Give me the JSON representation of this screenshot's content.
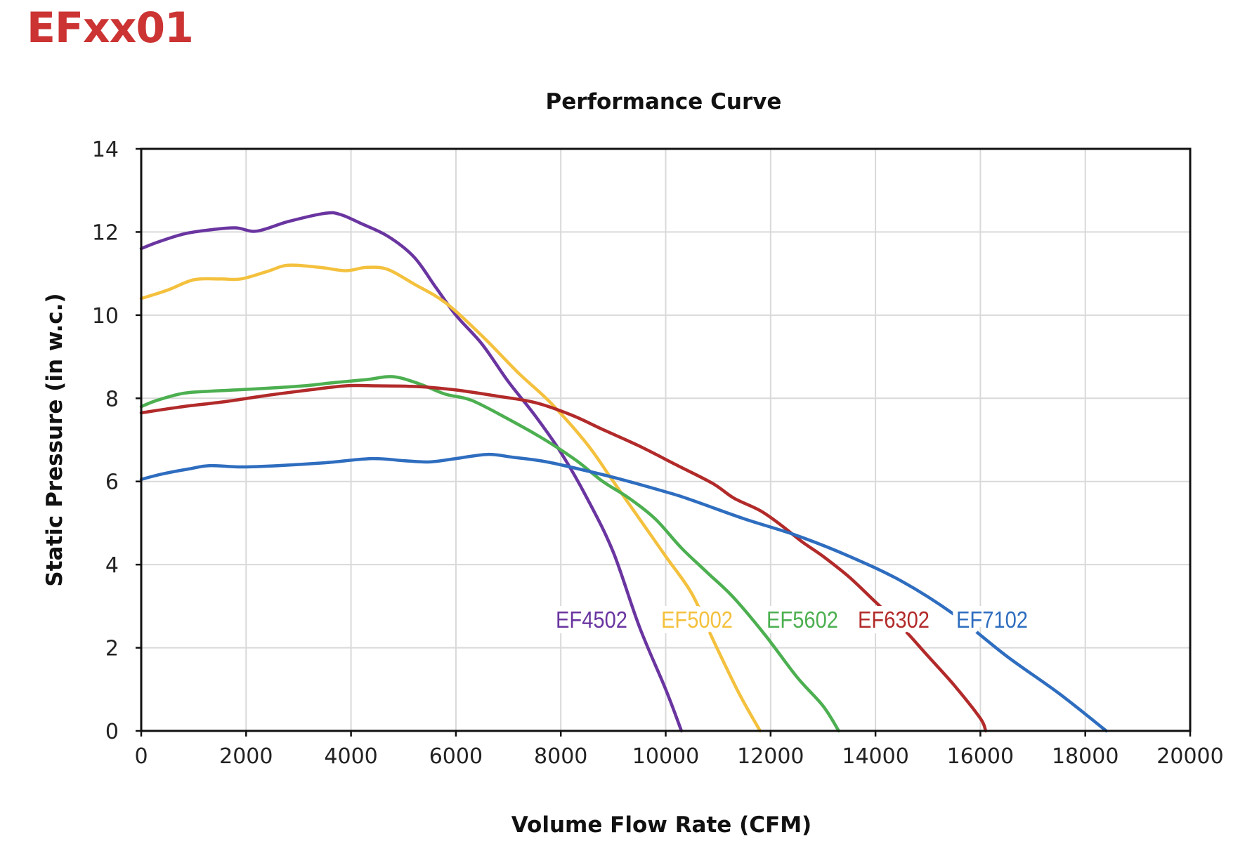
{
  "page": {
    "title": "EFxx01",
    "title_color": "#cc3333"
  },
  "chart_data": {
    "type": "line",
    "title": "Performance Curve",
    "xlabel": "Volume Flow Rate (CFM)",
    "ylabel": "Static Pressure (in w.c.)",
    "xlim": [
      0,
      20000
    ],
    "ylim": [
      0,
      14
    ],
    "xticks": [
      0,
      2000,
      4000,
      6000,
      8000,
      10000,
      12000,
      14000,
      16000,
      18000,
      20000
    ],
    "yticks": [
      0,
      2,
      4,
      6,
      8,
      10,
      12,
      14
    ],
    "grid": true,
    "legend": "inline labels near bottom right",
    "series": [
      {
        "name": "EF4502",
        "color": "#6a35a0",
        "x": [
          0,
          300,
          800,
          1300,
          1800,
          2200,
          2800,
          3500,
          3800,
          4200,
          4700,
          5200,
          5600,
          6000,
          6500,
          7000,
          7500,
          8000,
          8500,
          9000,
          9500,
          10000,
          10300
        ],
        "y": [
          11.6,
          11.75,
          11.95,
          12.05,
          12.1,
          12.02,
          12.25,
          12.45,
          12.42,
          12.2,
          11.9,
          11.4,
          10.7,
          10.0,
          9.3,
          8.4,
          7.6,
          6.7,
          5.6,
          4.3,
          2.5,
          1.0,
          0.0
        ]
      },
      {
        "name": "EF5002",
        "color": "#f4c13e",
        "x": [
          0,
          500,
          1000,
          1500,
          1900,
          2400,
          2800,
          3400,
          3900,
          4300,
          4700,
          5200,
          5800,
          6500,
          7200,
          7800,
          8500,
          9000,
          9500,
          10000,
          10500,
          10900,
          11400,
          11800
        ],
        "y": [
          10.4,
          10.6,
          10.85,
          10.87,
          10.87,
          11.05,
          11.2,
          11.15,
          11.07,
          11.15,
          11.1,
          10.75,
          10.3,
          9.5,
          8.6,
          7.9,
          6.9,
          6.0,
          5.1,
          4.2,
          3.3,
          2.2,
          0.9,
          0.0
        ]
      },
      {
        "name": "EF5602",
        "color": "#4caf50",
        "x": [
          0,
          300,
          800,
          1300,
          1800,
          2500,
          3100,
          3700,
          4300,
          4800,
          5300,
          5800,
          6300,
          7000,
          7700,
          8300,
          8800,
          9300,
          9800,
          10300,
          10800,
          11300,
          11900,
          12500,
          13000,
          13300
        ],
        "y": [
          7.8,
          7.95,
          8.12,
          8.17,
          8.2,
          8.25,
          8.3,
          8.38,
          8.45,
          8.52,
          8.35,
          8.1,
          7.95,
          7.5,
          7.0,
          6.5,
          6.0,
          5.6,
          5.1,
          4.4,
          3.8,
          3.2,
          2.3,
          1.3,
          0.6,
          0.0
        ]
      },
      {
        "name": "EF6302",
        "color": "#b22a2a",
        "x": [
          0,
          800,
          1600,
          2400,
          3200,
          3900,
          4500,
          5300,
          6000,
          6800,
          7500,
          8200,
          8800,
          9500,
          10200,
          10900,
          11300,
          11800,
          12200,
          12600,
          13000,
          13500,
          14000,
          14500,
          15000,
          15500,
          16000,
          16100
        ],
        "y": [
          7.65,
          7.8,
          7.92,
          8.07,
          8.2,
          8.3,
          8.3,
          8.28,
          8.2,
          8.05,
          7.9,
          7.6,
          7.25,
          6.85,
          6.4,
          5.95,
          5.6,
          5.3,
          4.95,
          4.55,
          4.2,
          3.7,
          3.1,
          2.5,
          1.8,
          1.1,
          0.3,
          0.0
        ]
      },
      {
        "name": "EF7102",
        "color": "#2e6dbf",
        "x": [
          0,
          400,
          900,
          1300,
          1900,
          2600,
          3500,
          4400,
          5000,
          5500,
          6000,
          6600,
          7100,
          7600,
          8000,
          9000,
          10000,
          10500,
          11500,
          12500,
          13500,
          14500,
          15500,
          16500,
          17500,
          18400
        ],
        "y": [
          6.05,
          6.18,
          6.3,
          6.38,
          6.35,
          6.38,
          6.45,
          6.55,
          6.5,
          6.47,
          6.55,
          6.65,
          6.58,
          6.5,
          6.4,
          6.1,
          5.75,
          5.55,
          5.1,
          4.7,
          4.2,
          3.6,
          2.8,
          1.8,
          0.9,
          0.0
        ]
      }
    ]
  }
}
